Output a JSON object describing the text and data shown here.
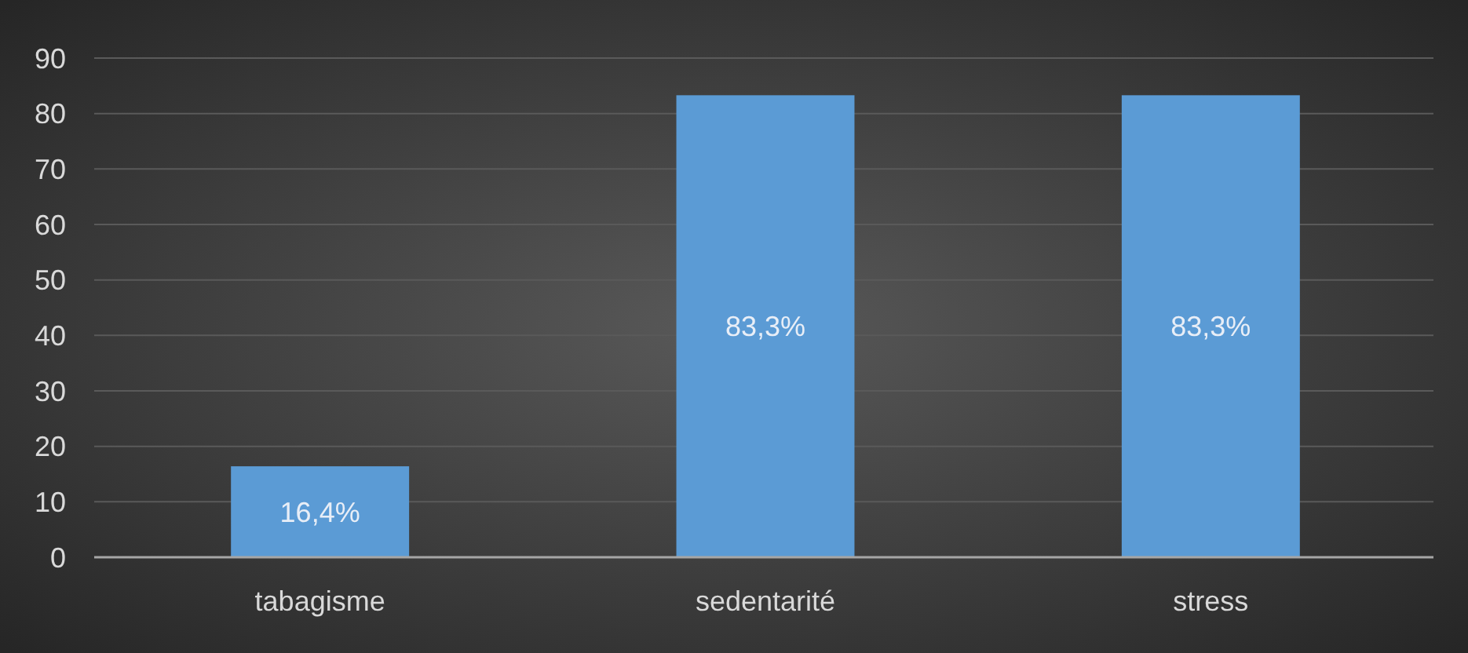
{
  "chart_data": {
    "type": "bar",
    "categories": [
      "tabagisme",
      "sedentarité",
      "stress"
    ],
    "values": [
      16.4,
      83.3,
      83.3
    ],
    "value_labels": [
      "16,4%",
      "83,3%",
      "83,3%"
    ],
    "color": "#5b9bd5",
    "ylim": [
      0,
      90
    ],
    "yticks": [
      0,
      10,
      20,
      30,
      40,
      50,
      60,
      70,
      80,
      90
    ],
    "grid": "y"
  }
}
